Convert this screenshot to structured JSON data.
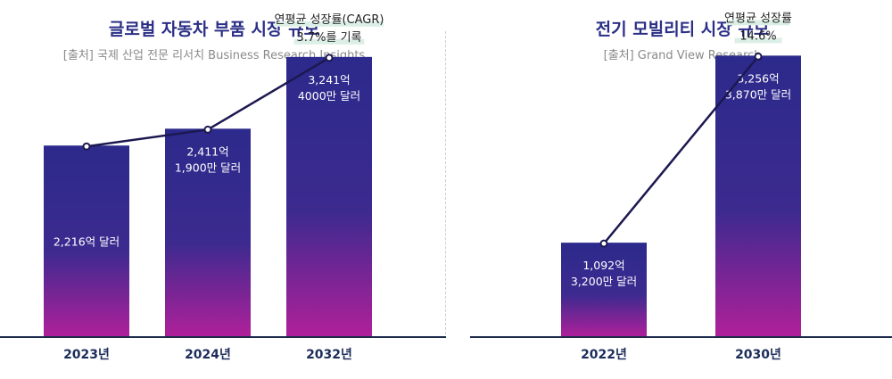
{
  "colors": {
    "title": "#2b2f85",
    "bar_top": "#2c2a8c",
    "bar_bottom": "#b0209a",
    "line": "#1c1850",
    "axis": "#1c2a4a",
    "annotation_highlight": "#dcefe6",
    "year_label": "#1c2d5a",
    "source": "#8a8a8a"
  },
  "chart_data": [
    {
      "type": "bar",
      "title": "글로벌 자동차 부품 시장 규모",
      "subtitle": "[출처] 국제 산업 전문 리서치 Business Research Insights",
      "categories": [
        "2023년",
        "2024년",
        "2032년"
      ],
      "values": [
        2216,
        2411,
        3241.4
      ],
      "unit": "억 달러",
      "data_labels": [
        [
          "2,216억 달러"
        ],
        [
          "2,411억",
          "1,900만 달러"
        ],
        [
          "3,241억",
          "4000만 달러"
        ]
      ],
      "annotation": [
        "연평균 성장률(CAGR)",
        "3.7%를 기록"
      ],
      "trend_line": true,
      "ylim": [
        0,
        3900
      ]
    },
    {
      "type": "bar",
      "title": "전기 모빌리티 시장 규모",
      "subtitle": "[출처] Grand View Research",
      "categories": [
        "2022년",
        "2030년"
      ],
      "values": [
        1092.32,
        3256.387
      ],
      "unit": "억 달러",
      "data_labels": [
        [
          "1,092억",
          "3,200만 달러"
        ],
        [
          "3,256억",
          "3,870만 달러"
        ]
      ],
      "annotation": [
        "연평균 성장률",
        "14.6%"
      ],
      "trend_line": true,
      "ylim": [
        0,
        3900
      ]
    }
  ]
}
